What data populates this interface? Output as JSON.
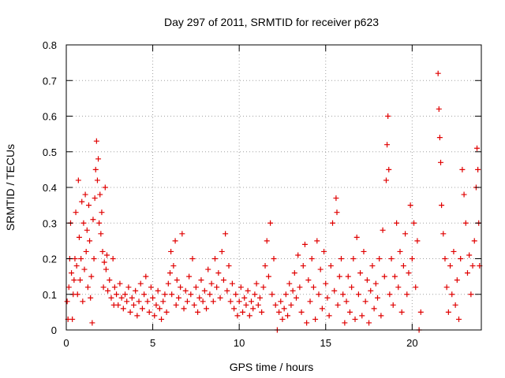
{
  "chart_data": {
    "type": "scatter",
    "title": "Day 297 of 2011, SRMTID for receiver p623",
    "xlabel": "GPS time / hours",
    "ylabel": "SRMTID / TECUs",
    "xlim": [
      0,
      24
    ],
    "ylim": [
      0,
      0.8
    ],
    "xticks": [
      0,
      5,
      10,
      15,
      20
    ],
    "yticks": [
      0,
      0.1,
      0.2,
      0.3,
      0.4,
      0.5,
      0.6,
      0.7,
      0.8
    ],
    "grid": true,
    "marker": "+",
    "color": "#e00000",
    "series": [
      {
        "name": "SRMTID",
        "points": [
          [
            0.05,
            0.08
          ],
          [
            0.1,
            0.03
          ],
          [
            0.15,
            0.12
          ],
          [
            0.2,
            0.2
          ],
          [
            0.25,
            0.3
          ],
          [
            0.3,
            0.16
          ],
          [
            0.35,
            0.03
          ],
          [
            0.4,
            0.1
          ],
          [
            0.45,
            0.14
          ],
          [
            0.5,
            0.2
          ],
          [
            0.55,
            0.33
          ],
          [
            0.6,
            0.18
          ],
          [
            0.65,
            0.1
          ],
          [
            0.7,
            0.42
          ],
          [
            0.75,
            0.26
          ],
          [
            0.8,
            0.14
          ],
          [
            0.85,
            0.2
          ],
          [
            0.9,
            0.36
          ],
          [
            0.95,
            0.08
          ],
          [
            1.0,
            0.3
          ],
          [
            1.05,
            0.17
          ],
          [
            1.1,
            0.38
          ],
          [
            1.15,
            0.22
          ],
          [
            1.2,
            0.28
          ],
          [
            1.25,
            0.12
          ],
          [
            1.3,
            0.35
          ],
          [
            1.35,
            0.25
          ],
          [
            1.4,
            0.09
          ],
          [
            1.45,
            0.15
          ],
          [
            1.5,
            0.02
          ],
          [
            1.55,
            0.31
          ],
          [
            1.6,
            0.2
          ],
          [
            1.65,
            0.37
          ],
          [
            1.7,
            0.45
          ],
          [
            1.75,
            0.53
          ],
          [
            1.8,
            0.42
          ],
          [
            1.85,
            0.48
          ],
          [
            1.9,
            0.3
          ],
          [
            1.95,
            0.38
          ],
          [
            2.0,
            0.27
          ],
          [
            2.05,
            0.33
          ],
          [
            2.1,
            0.22
          ],
          [
            2.15,
            0.12
          ],
          [
            2.2,
            0.19
          ],
          [
            2.25,
            0.4
          ],
          [
            2.3,
            0.17
          ],
          [
            2.35,
            0.21
          ],
          [
            2.4,
            0.11
          ],
          [
            2.5,
            0.14
          ],
          [
            2.6,
            0.09
          ],
          [
            2.7,
            0.2
          ],
          [
            2.75,
            0.07
          ],
          [
            2.8,
            0.12
          ],
          [
            2.9,
            0.1
          ],
          [
            3.0,
            0.07
          ],
          [
            3.1,
            0.13
          ],
          [
            3.2,
            0.09
          ],
          [
            3.3,
            0.06
          ],
          [
            3.4,
            0.1
          ],
          [
            3.5,
            0.08
          ],
          [
            3.6,
            0.12
          ],
          [
            3.7,
            0.05
          ],
          [
            3.8,
            0.09
          ],
          [
            3.9,
            0.07
          ],
          [
            4.0,
            0.11
          ],
          [
            4.1,
            0.04
          ],
          [
            4.2,
            0.08
          ],
          [
            4.3,
            0.13
          ],
          [
            4.4,
            0.06
          ],
          [
            4.5,
            0.1
          ],
          [
            4.6,
            0.15
          ],
          [
            4.7,
            0.08
          ],
          [
            4.8,
            0.05
          ],
          [
            4.9,
            0.12
          ],
          [
            5.0,
            0.09
          ],
          [
            5.1,
            0.04
          ],
          [
            5.2,
            0.07
          ],
          [
            5.3,
            0.11
          ],
          [
            5.4,
            0.06
          ],
          [
            5.5,
            0.03
          ],
          [
            5.6,
            0.08
          ],
          [
            5.7,
            0.1
          ],
          [
            5.8,
            0.05
          ],
          [
            5.9,
            0.13
          ],
          [
            6.0,
            0.16
          ],
          [
            6.05,
            0.22
          ],
          [
            6.1,
            0.1
          ],
          [
            6.2,
            0.18
          ],
          [
            6.3,
            0.25
          ],
          [
            6.35,
            0.07
          ],
          [
            6.4,
            0.14
          ],
          [
            6.5,
            0.09
          ],
          [
            6.6,
            0.12
          ],
          [
            6.7,
            0.27
          ],
          [
            6.8,
            0.06
          ],
          [
            6.9,
            0.11
          ],
          [
            7.0,
            0.08
          ],
          [
            7.1,
            0.15
          ],
          [
            7.2,
            0.1
          ],
          [
            7.3,
            0.2
          ],
          [
            7.4,
            0.07
          ],
          [
            7.5,
            0.12
          ],
          [
            7.6,
            0.05
          ],
          [
            7.7,
            0.09
          ],
          [
            7.8,
            0.14
          ],
          [
            7.9,
            0.08
          ],
          [
            8.0,
            0.11
          ],
          [
            8.1,
            0.06
          ],
          [
            8.2,
            0.17
          ],
          [
            8.3,
            0.1
          ],
          [
            8.4,
            0.13
          ],
          [
            8.5,
            0.08
          ],
          [
            8.6,
            0.2
          ],
          [
            8.7,
            0.12
          ],
          [
            8.8,
            0.16
          ],
          [
            8.9,
            0.09
          ],
          [
            9.0,
            0.22
          ],
          [
            9.1,
            0.14
          ],
          [
            9.2,
            0.27
          ],
          [
            9.3,
            0.11
          ],
          [
            9.4,
            0.18
          ],
          [
            9.5,
            0.08
          ],
          [
            9.6,
            0.13
          ],
          [
            9.7,
            0.06
          ],
          [
            9.8,
            0.1
          ],
          [
            9.9,
            0.04
          ],
          [
            10.0,
            0.08
          ],
          [
            10.1,
            0.12
          ],
          [
            10.2,
            0.05
          ],
          [
            10.3,
            0.09
          ],
          [
            10.4,
            0.07
          ],
          [
            10.5,
            0.11
          ],
          [
            10.6,
            0.04
          ],
          [
            10.7,
            0.08
          ],
          [
            10.8,
            0.06
          ],
          [
            10.9,
            0.1
          ],
          [
            11.0,
            0.13
          ],
          [
            11.1,
            0.07
          ],
          [
            11.2,
            0.09
          ],
          [
            11.3,
            0.05
          ],
          [
            11.4,
            0.12
          ],
          [
            11.5,
            0.18
          ],
          [
            11.6,
            0.25
          ],
          [
            11.7,
            0.15
          ],
          [
            11.8,
            0.3
          ],
          [
            11.9,
            0.1
          ],
          [
            12.0,
            0.2
          ],
          [
            12.1,
            0.07
          ],
          [
            12.2,
            0.0
          ],
          [
            12.3,
            0.05
          ],
          [
            12.4,
            0.08
          ],
          [
            12.5,
            0.03
          ],
          [
            12.6,
            0.06
          ],
          [
            12.7,
            0.1
          ],
          [
            12.8,
            0.04
          ],
          [
            12.9,
            0.13
          ],
          [
            13.0,
            0.07
          ],
          [
            13.1,
            0.11
          ],
          [
            13.2,
            0.16
          ],
          [
            13.3,
            0.09
          ],
          [
            13.4,
            0.21
          ],
          [
            13.5,
            0.12
          ],
          [
            13.6,
            0.05
          ],
          [
            13.7,
            0.18
          ],
          [
            13.8,
            0.24
          ],
          [
            13.9,
            0.02
          ],
          [
            14.0,
            0.14
          ],
          [
            14.1,
            0.08
          ],
          [
            14.2,
            0.2
          ],
          [
            14.3,
            0.12
          ],
          [
            14.4,
            0.03
          ],
          [
            14.5,
            0.25
          ],
          [
            14.6,
            0.1
          ],
          [
            14.7,
            0.17
          ],
          [
            14.8,
            0.06
          ],
          [
            14.9,
            0.22
          ],
          [
            15.0,
            0.13
          ],
          [
            15.1,
            0.09
          ],
          [
            15.2,
            0.04
          ],
          [
            15.3,
            0.18
          ],
          [
            15.4,
            0.3
          ],
          [
            15.5,
            0.11
          ],
          [
            15.6,
            0.37
          ],
          [
            15.65,
            0.33
          ],
          [
            15.7,
            0.07
          ],
          [
            15.8,
            0.15
          ],
          [
            15.9,
            0.2
          ],
          [
            16.0,
            0.1
          ],
          [
            16.1,
            0.02
          ],
          [
            16.2,
            0.08
          ],
          [
            16.3,
            0.15
          ],
          [
            16.4,
            0.05
          ],
          [
            16.5,
            0.12
          ],
          [
            16.6,
            0.2
          ],
          [
            16.7,
            0.03
          ],
          [
            16.8,
            0.26
          ],
          [
            16.9,
            0.1
          ],
          [
            17.0,
            0.16
          ],
          [
            17.1,
            0.04
          ],
          [
            17.2,
            0.22
          ],
          [
            17.3,
            0.08
          ],
          [
            17.4,
            0.14
          ],
          [
            17.5,
            0.02
          ],
          [
            17.6,
            0.11
          ],
          [
            17.7,
            0.18
          ],
          [
            17.8,
            0.06
          ],
          [
            17.9,
            0.13
          ],
          [
            18.0,
            0.09
          ],
          [
            18.1,
            0.2
          ],
          [
            18.2,
            0.04
          ],
          [
            18.3,
            0.28
          ],
          [
            18.4,
            0.15
          ],
          [
            18.5,
            0.42
          ],
          [
            18.55,
            0.52
          ],
          [
            18.6,
            0.6
          ],
          [
            18.65,
            0.45
          ],
          [
            18.7,
            0.1
          ],
          [
            18.8,
            0.2
          ],
          [
            18.9,
            0.07
          ],
          [
            19.0,
            0.15
          ],
          [
            19.1,
            0.3
          ],
          [
            19.2,
            0.12
          ],
          [
            19.3,
            0.22
          ],
          [
            19.4,
            0.05
          ],
          [
            19.5,
            0.18
          ],
          [
            19.6,
            0.27
          ],
          [
            19.7,
            0.1
          ],
          [
            19.8,
            0.16
          ],
          [
            19.9,
            0.35
          ],
          [
            20.0,
            0.2
          ],
          [
            20.1,
            0.3
          ],
          [
            20.2,
            0.12
          ],
          [
            20.3,
            0.25
          ],
          [
            20.4,
            0.0
          ],
          [
            20.5,
            0.05
          ],
          [
            21.5,
            0.72
          ],
          [
            21.55,
            0.62
          ],
          [
            21.6,
            0.54
          ],
          [
            21.65,
            0.47
          ],
          [
            21.7,
            0.35
          ],
          [
            21.8,
            0.27
          ],
          [
            21.9,
            0.2
          ],
          [
            22.0,
            0.12
          ],
          [
            22.1,
            0.05
          ],
          [
            22.2,
            0.18
          ],
          [
            22.3,
            0.1
          ],
          [
            22.4,
            0.22
          ],
          [
            22.5,
            0.07
          ],
          [
            22.6,
            0.14
          ],
          [
            22.7,
            0.03
          ],
          [
            22.8,
            0.2
          ],
          [
            22.9,
            0.45
          ],
          [
            23.0,
            0.38
          ],
          [
            23.1,
            0.3
          ],
          [
            23.2,
            0.16
          ],
          [
            23.3,
            0.21
          ],
          [
            23.4,
            0.1
          ],
          [
            23.5,
            0.18
          ],
          [
            23.6,
            0.25
          ],
          [
            23.7,
            0.4
          ],
          [
            23.75,
            0.51
          ],
          [
            23.8,
            0.45
          ],
          [
            23.85,
            0.3
          ],
          [
            23.9,
            0.18
          ]
        ]
      }
    ]
  }
}
